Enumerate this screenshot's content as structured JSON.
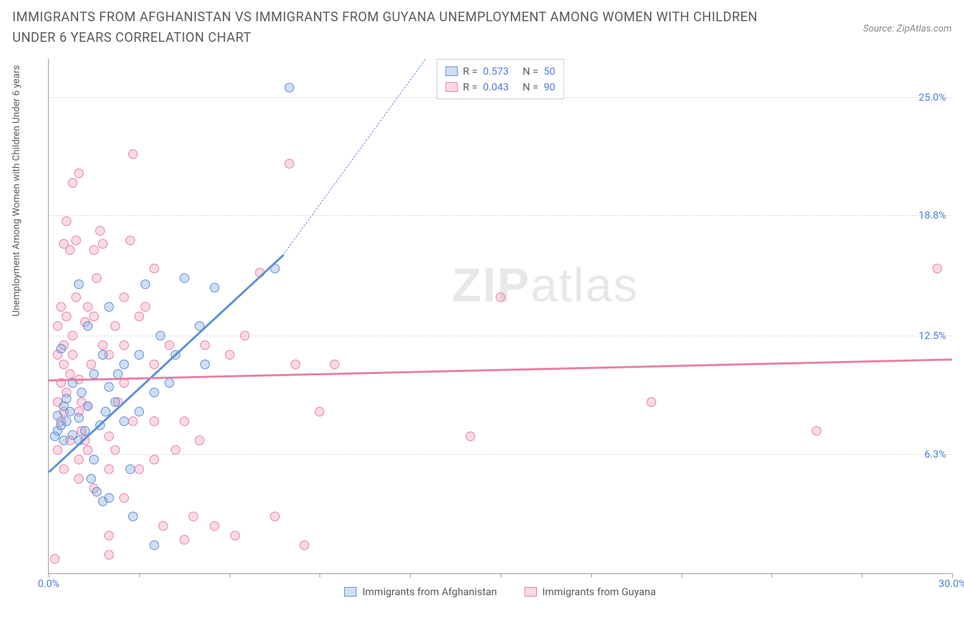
{
  "title": "IMMIGRANTS FROM AFGHANISTAN VS IMMIGRANTS FROM GUYANA UNEMPLOYMENT AMONG WOMEN WITH CHILDREN UNDER 6 YEARS CORRELATION CHART",
  "source": "Source: ZipAtlas.com",
  "y_axis_label": "Unemployment Among Women with Children Under 6 years",
  "watermark_bold": "ZIP",
  "watermark_rest": "atlas",
  "chart": {
    "type": "scatter",
    "xlim": [
      0,
      30
    ],
    "ylim": [
      0,
      27
    ],
    "x_ticks": [
      0,
      3,
      6,
      9,
      12,
      15,
      18,
      21,
      24,
      27,
      30
    ],
    "x_tick_labels": {
      "0": "0.0%",
      "30": "30.0%"
    },
    "y_ticks": [
      6.3,
      12.5,
      18.8,
      25.0
    ],
    "y_tick_labels": [
      "6.3%",
      "12.5%",
      "18.8%",
      "25.0%"
    ],
    "grid_color": "#dddddd",
    "background_color": "#ffffff",
    "axis_color": "#999999",
    "marker_radius": 7,
    "label_color": "#4a7fd8"
  },
  "series": [
    {
      "name": "Immigrants from Afghanistan",
      "fill": "rgba(120,160,220,0.35)",
      "stroke": "#5b8fd6",
      "r_value": "0.573",
      "n_value": "50",
      "trend": {
        "x1": 0,
        "y1": 5.4,
        "x2": 7.8,
        "y2": 16.8,
        "dash_to_x": 12.5,
        "dash_to_y": 27
      },
      "points": [
        [
          0.2,
          7.2
        ],
        [
          0.3,
          7.5
        ],
        [
          0.5,
          7.0
        ],
        [
          0.4,
          7.8
        ],
        [
          0.6,
          8.0
        ],
        [
          0.3,
          8.3
        ],
        [
          0.7,
          8.5
        ],
        [
          0.5,
          8.8
        ],
        [
          0.8,
          7.3
        ],
        [
          0.6,
          9.2
        ],
        [
          0.4,
          11.8
        ],
        [
          1.0,
          7.0
        ],
        [
          1.2,
          7.5
        ],
        [
          1.0,
          8.2
        ],
        [
          1.3,
          8.8
        ],
        [
          1.1,
          9.5
        ],
        [
          1.5,
          6.0
        ],
        [
          1.4,
          5.0
        ],
        [
          1.6,
          4.3
        ],
        [
          1.8,
          3.8
        ],
        [
          2.0,
          4.0
        ],
        [
          1.7,
          7.8
        ],
        [
          1.9,
          8.5
        ],
        [
          2.2,
          9.0
        ],
        [
          2.0,
          9.8
        ],
        [
          2.3,
          10.5
        ],
        [
          2.5,
          8.0
        ],
        [
          2.7,
          5.5
        ],
        [
          2.5,
          11.0
        ],
        [
          3.0,
          8.5
        ],
        [
          3.0,
          11.5
        ],
        [
          3.2,
          15.2
        ],
        [
          3.5,
          9.5
        ],
        [
          3.7,
          12.5
        ],
        [
          4.0,
          10.0
        ],
        [
          4.2,
          11.5
        ],
        [
          4.5,
          15.5
        ],
        [
          5.0,
          13.0
        ],
        [
          5.2,
          11.0
        ],
        [
          5.5,
          15.0
        ],
        [
          7.5,
          16.0
        ],
        [
          8.0,
          25.5
        ],
        [
          1.0,
          15.2
        ],
        [
          1.3,
          13.0
        ],
        [
          1.5,
          10.5
        ],
        [
          1.8,
          11.5
        ],
        [
          0.8,
          10.0
        ],
        [
          2.8,
          3.0
        ],
        [
          3.5,
          1.5
        ],
        [
          2.0,
          14.0
        ]
      ]
    },
    {
      "name": "Immigrants from Guyana",
      "fill": "rgba(240,150,180,0.35)",
      "stroke": "#e87fa8",
      "r_value": "0.043",
      "n_value": "90",
      "trend": {
        "x1": 0,
        "y1": 10.2,
        "x2": 30,
        "y2": 11.3
      },
      "points": [
        [
          0.2,
          0.8
        ],
        [
          0.3,
          6.5
        ],
        [
          0.4,
          8.0
        ],
        [
          0.5,
          8.5
        ],
        [
          0.3,
          9.0
        ],
        [
          0.6,
          9.5
        ],
        [
          0.4,
          10.0
        ],
        [
          0.7,
          10.5
        ],
        [
          0.5,
          11.0
        ],
        [
          0.8,
          11.5
        ],
        [
          0.3,
          13.0
        ],
        [
          0.6,
          13.5
        ],
        [
          0.4,
          14.0
        ],
        [
          0.7,
          17.0
        ],
        [
          0.5,
          17.3
        ],
        [
          0.9,
          17.5
        ],
        [
          0.6,
          18.5
        ],
        [
          0.8,
          20.5
        ],
        [
          1.0,
          21.0
        ],
        [
          1.0,
          6.0
        ],
        [
          1.2,
          7.0
        ],
        [
          1.1,
          7.5
        ],
        [
          1.3,
          8.8
        ],
        [
          1.0,
          10.2
        ],
        [
          1.4,
          11.0
        ],
        [
          1.2,
          13.2
        ],
        [
          1.5,
          13.5
        ],
        [
          1.3,
          14.0
        ],
        [
          1.6,
          15.5
        ],
        [
          1.5,
          17.0
        ],
        [
          1.8,
          17.3
        ],
        [
          1.7,
          18.0
        ],
        [
          2.0,
          2.0
        ],
        [
          2.0,
          1.0
        ],
        [
          2.2,
          6.5
        ],
        [
          2.0,
          7.2
        ],
        [
          2.3,
          9.0
        ],
        [
          2.5,
          10.0
        ],
        [
          2.2,
          13.0
        ],
        [
          2.5,
          14.5
        ],
        [
          2.7,
          17.5
        ],
        [
          2.8,
          22.0
        ],
        [
          3.0,
          13.5
        ],
        [
          3.2,
          14.0
        ],
        [
          3.5,
          6.0
        ],
        [
          3.5,
          11.0
        ],
        [
          3.8,
          2.5
        ],
        [
          4.0,
          12.0
        ],
        [
          4.2,
          6.5
        ],
        [
          4.5,
          1.8
        ],
        [
          4.8,
          3.0
        ],
        [
          5.0,
          7.0
        ],
        [
          5.2,
          12.0
        ],
        [
          5.5,
          2.5
        ],
        [
          6.0,
          11.5
        ],
        [
          6.2,
          2.0
        ],
        [
          6.5,
          12.5
        ],
        [
          7.0,
          15.8
        ],
        [
          7.5,
          3.0
        ],
        [
          8.0,
          21.5
        ],
        [
          8.2,
          11.0
        ],
        [
          8.5,
          1.5
        ],
        [
          9.0,
          8.5
        ],
        [
          9.5,
          11.0
        ],
        [
          14.0,
          7.2
        ],
        [
          15.0,
          14.5
        ],
        [
          20.0,
          9.0
        ],
        [
          25.5,
          7.5
        ],
        [
          29.5,
          16.0
        ],
        [
          0.5,
          5.5
        ],
        [
          1.0,
          5.0
        ],
        [
          1.5,
          4.5
        ],
        [
          2.0,
          5.5
        ],
        [
          2.5,
          4.0
        ],
        [
          3.0,
          5.5
        ],
        [
          0.8,
          12.5
        ],
        [
          1.8,
          12.0
        ],
        [
          1.0,
          8.5
        ],
        [
          0.7,
          7.0
        ],
        [
          2.8,
          8.0
        ],
        [
          3.5,
          8.0
        ],
        [
          4.5,
          8.0
        ],
        [
          1.3,
          6.5
        ],
        [
          0.9,
          14.5
        ],
        [
          1.1,
          9.0
        ],
        [
          2.0,
          11.5
        ],
        [
          2.5,
          12.0
        ],
        [
          3.5,
          16.0
        ],
        [
          0.3,
          11.5
        ],
        [
          0.5,
          12.0
        ]
      ]
    }
  ],
  "legend_box": {
    "r_label": "R =",
    "n_label": "N ="
  },
  "bottom_legend": [
    "Immigrants from Afghanistan",
    "Immigrants from Guyana"
  ]
}
